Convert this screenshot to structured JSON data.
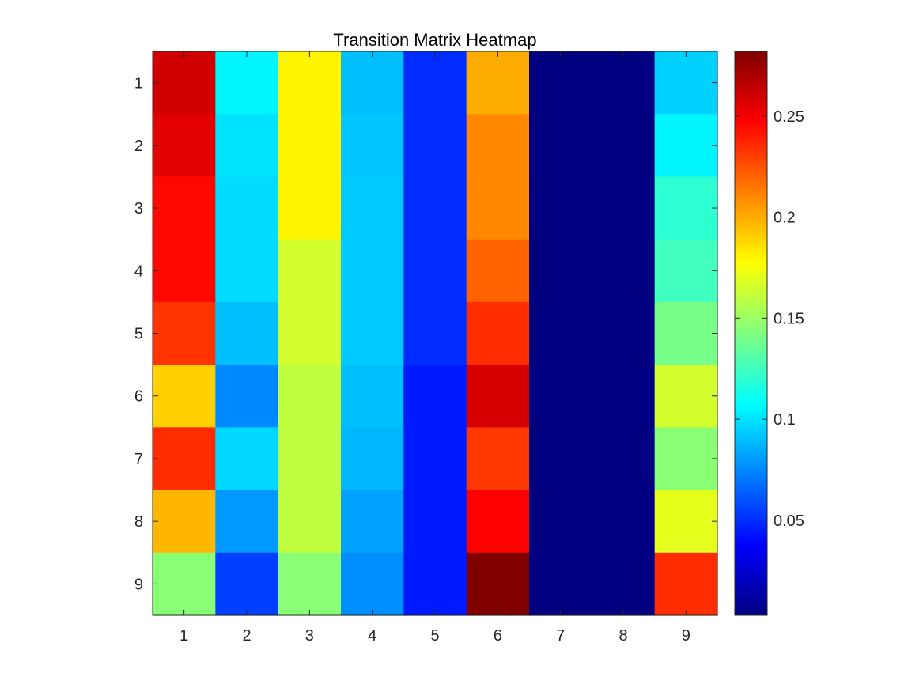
{
  "chart_data": {
    "type": "heatmap",
    "title": "Transition Matrix Heatmap",
    "xlabel": "",
    "ylabel": "",
    "x_categories": [
      "1",
      "2",
      "3",
      "4",
      "5",
      "6",
      "7",
      "8",
      "9"
    ],
    "y_categories": [
      "1",
      "2",
      "3",
      "4",
      "5",
      "6",
      "7",
      "8",
      "9"
    ],
    "colormap": "jet",
    "clim": [
      0.003,
      0.282
    ],
    "colorbar": {
      "position": "right",
      "ticks": [
        0.05,
        0.1,
        0.15,
        0.2,
        0.25
      ],
      "tick_labels": [
        "0.05",
        "0.1",
        "0.15",
        "0.2",
        "0.25"
      ]
    },
    "values": [
      [
        0.26,
        0.105,
        0.18,
        0.09,
        0.05,
        0.2,
        0.003,
        0.003,
        0.095
      ],
      [
        0.255,
        0.1,
        0.18,
        0.092,
        0.05,
        0.21,
        0.003,
        0.003,
        0.105
      ],
      [
        0.245,
        0.098,
        0.18,
        0.093,
        0.05,
        0.21,
        0.003,
        0.003,
        0.12
      ],
      [
        0.245,
        0.098,
        0.165,
        0.093,
        0.05,
        0.22,
        0.003,
        0.003,
        0.125
      ],
      [
        0.233,
        0.09,
        0.165,
        0.093,
        0.05,
        0.235,
        0.003,
        0.003,
        0.14
      ],
      [
        0.19,
        0.075,
        0.16,
        0.09,
        0.045,
        0.258,
        0.003,
        0.003,
        0.165
      ],
      [
        0.235,
        0.097,
        0.16,
        0.088,
        0.045,
        0.232,
        0.003,
        0.003,
        0.145
      ],
      [
        0.197,
        0.08,
        0.16,
        0.082,
        0.045,
        0.247,
        0.003,
        0.003,
        0.17
      ],
      [
        0.145,
        0.055,
        0.145,
        0.077,
        0.045,
        0.282,
        0.003,
        0.003,
        0.235
      ]
    ]
  }
}
